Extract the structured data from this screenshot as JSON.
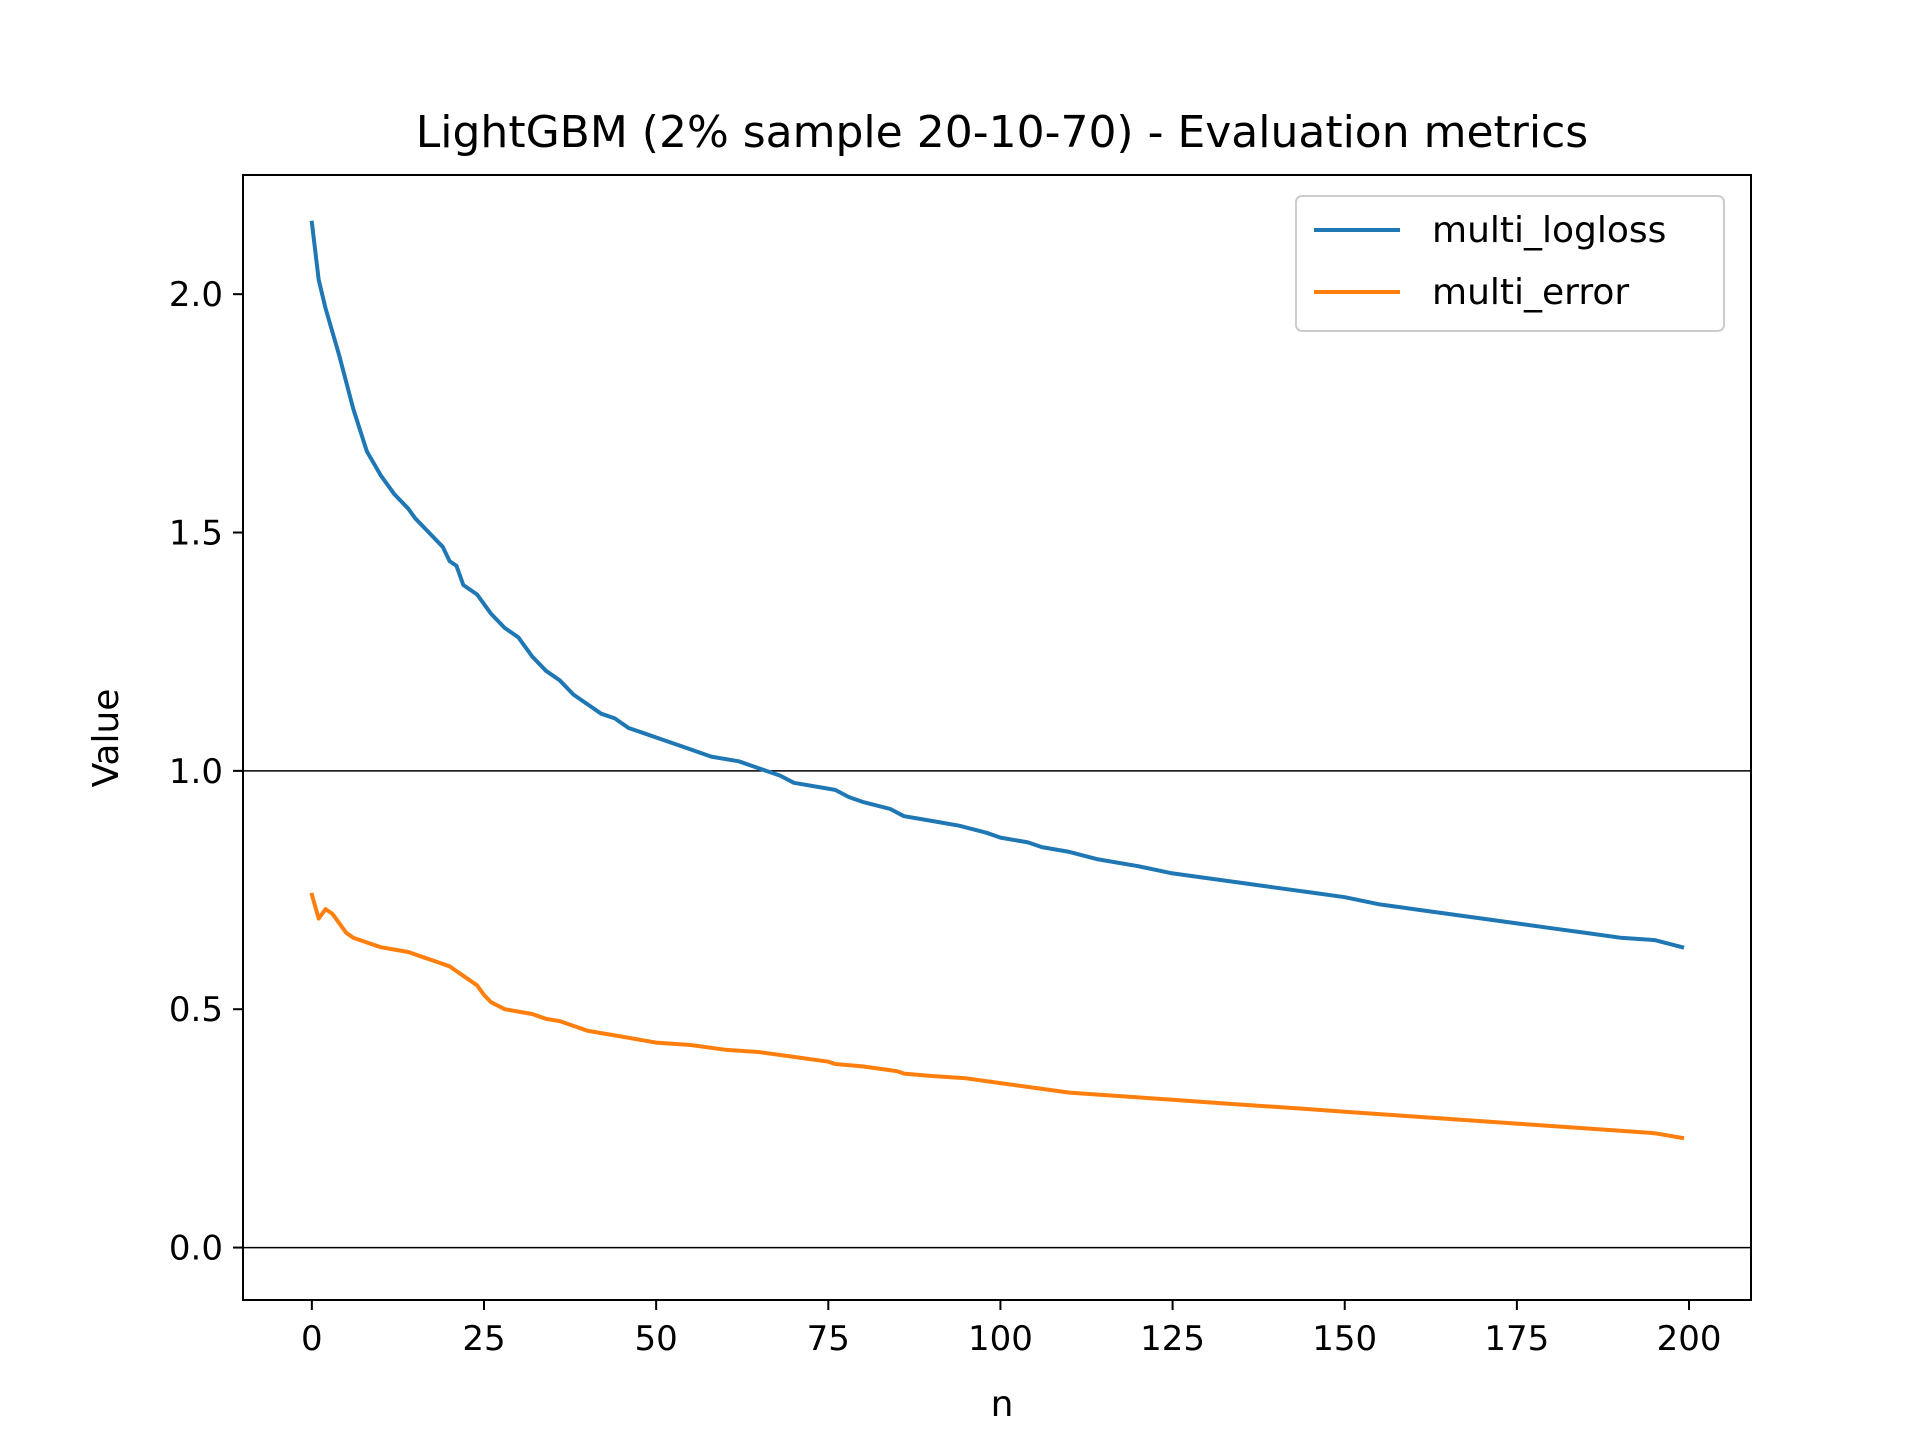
{
  "chart_data": {
    "type": "line",
    "title": "LightGBM (2% sample 20-10-70) - Evaluation metrics",
    "xlabel": "n",
    "ylabel": "Value",
    "xlim": [
      -10,
      209
    ],
    "ylim": [
      -0.11,
      2.25
    ],
    "xticks": [
      0,
      25,
      50,
      75,
      100,
      125,
      150,
      175,
      200
    ],
    "yticks": [
      0.0,
      0.5,
      1.0,
      1.5,
      2.0
    ],
    "xtick_labels": [
      "0",
      "25",
      "50",
      "75",
      "100",
      "125",
      "150",
      "175",
      "200"
    ],
    "ytick_labels": [
      "0.0",
      "0.5",
      "1.0",
      "1.5",
      "2.0"
    ],
    "hlines": [
      0.0,
      1.0
    ],
    "grid": false,
    "legend_position": "top-right",
    "series": [
      {
        "name": "multi_logloss",
        "color": "#1f77b4",
        "x": [
          0,
          1,
          2,
          4,
          6,
          8,
          10,
          12,
          14,
          15,
          17,
          19,
          20,
          21,
          22,
          24,
          26,
          28,
          30,
          32,
          34,
          36,
          38,
          40,
          42,
          44,
          46,
          48,
          50,
          54,
          58,
          62,
          64,
          66,
          68,
          70,
          76,
          78,
          80,
          84,
          86,
          88,
          90,
          94,
          98,
          100,
          104,
          106,
          110,
          114,
          120,
          125,
          130,
          135,
          140,
          145,
          150,
          155,
          160,
          165,
          170,
          175,
          180,
          185,
          190,
          195,
          199
        ],
        "y": [
          2.15,
          2.03,
          1.97,
          1.87,
          1.76,
          1.67,
          1.62,
          1.58,
          1.55,
          1.53,
          1.5,
          1.47,
          1.44,
          1.43,
          1.39,
          1.37,
          1.33,
          1.3,
          1.28,
          1.24,
          1.21,
          1.19,
          1.16,
          1.14,
          1.12,
          1.11,
          1.09,
          1.08,
          1.07,
          1.05,
          1.03,
          1.02,
          1.01,
          1.0,
          0.99,
          0.975,
          0.96,
          0.945,
          0.935,
          0.92,
          0.905,
          0.9,
          0.895,
          0.885,
          0.87,
          0.86,
          0.85,
          0.84,
          0.83,
          0.815,
          0.8,
          0.785,
          0.775,
          0.765,
          0.755,
          0.745,
          0.735,
          0.72,
          0.71,
          0.7,
          0.69,
          0.68,
          0.67,
          0.66,
          0.65,
          0.645,
          0.63
        ]
      },
      {
        "name": "multi_error",
        "color": "#ff7f0e",
        "x": [
          0,
          1,
          2,
          3,
          4,
          5,
          6,
          8,
          10,
          12,
          14,
          15,
          16,
          18,
          20,
          21,
          22,
          24,
          25,
          26,
          28,
          30,
          32,
          34,
          36,
          38,
          40,
          42,
          44,
          46,
          48,
          50,
          55,
          60,
          65,
          70,
          75,
          76,
          80,
          85,
          86,
          90,
          95,
          100,
          105,
          110,
          115,
          120,
          125,
          130,
          135,
          140,
          145,
          150,
          155,
          160,
          165,
          170,
          175,
          180,
          185,
          190,
          195,
          199
        ],
        "y": [
          0.74,
          0.69,
          0.71,
          0.7,
          0.68,
          0.66,
          0.65,
          0.64,
          0.63,
          0.625,
          0.62,
          0.615,
          0.61,
          0.6,
          0.59,
          0.58,
          0.57,
          0.55,
          0.53,
          0.515,
          0.5,
          0.495,
          0.49,
          0.48,
          0.475,
          0.465,
          0.455,
          0.45,
          0.445,
          0.44,
          0.435,
          0.43,
          0.425,
          0.415,
          0.41,
          0.4,
          0.39,
          0.385,
          0.38,
          0.37,
          0.365,
          0.36,
          0.355,
          0.345,
          0.335,
          0.325,
          0.32,
          0.315,
          0.31,
          0.305,
          0.3,
          0.295,
          0.29,
          0.285,
          0.28,
          0.275,
          0.27,
          0.265,
          0.26,
          0.255,
          0.25,
          0.245,
          0.24,
          0.23
        ]
      }
    ]
  }
}
